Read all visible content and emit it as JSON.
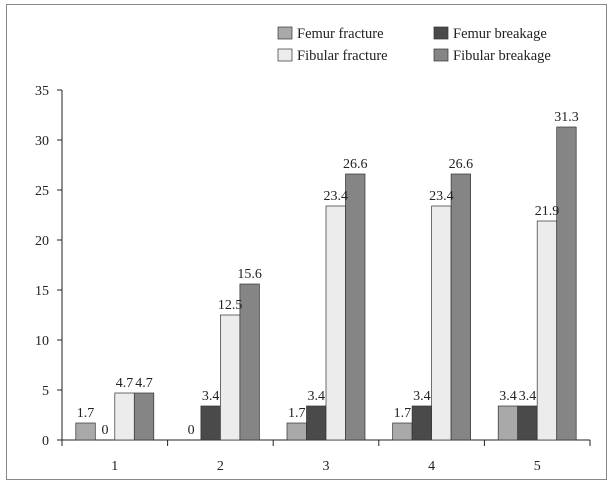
{
  "chart_data": {
    "type": "bar",
    "categories": [
      "1",
      "2",
      "3",
      "4",
      "5"
    ],
    "series": [
      {
        "name": "Femur fracture",
        "color": "#a9a9a9",
        "values": [
          1.7,
          0,
          1.7,
          1.7,
          3.4
        ]
      },
      {
        "name": "Femur breakage",
        "color": "#4a4a4a",
        "values": [
          0,
          3.4,
          3.4,
          3.4,
          3.4
        ]
      },
      {
        "name": "Fibular fracture",
        "color": "#ececec",
        "values": [
          4.7,
          12.5,
          23.4,
          23.4,
          21.9
        ]
      },
      {
        "name": "Fibular breakage",
        "color": "#858585",
        "values": [
          4.7,
          15.6,
          26.6,
          26.6,
          31.3
        ]
      }
    ],
    "data_labels": [
      [
        "1.7",
        "0",
        "4.7",
        "4.7"
      ],
      [
        "0",
        "3.4",
        "12.5",
        "15.6"
      ],
      [
        "1.7",
        "3.4",
        "23.4",
        "26.6"
      ],
      [
        "1.7",
        "3.4",
        "23.4",
        "26.6"
      ],
      [
        "3.4",
        "3.4",
        "21.9",
        "31.3"
      ]
    ],
    "y_ticks": [
      "0",
      "5",
      "10",
      "15",
      "20",
      "25",
      "30",
      "35"
    ],
    "ylim": [
      0,
      35
    ],
    "grid": false,
    "legend_position": "top-right"
  }
}
